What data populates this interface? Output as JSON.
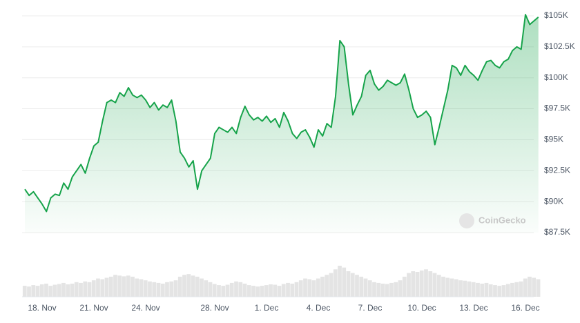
{
  "chart_data": {
    "type": "line",
    "categories": [
      null,
      null,
      null,
      null,
      "18. Nov",
      null,
      null,
      null,
      null,
      null,
      null,
      null,
      null,
      null,
      null,
      null,
      "21. Nov",
      null,
      null,
      null,
      null,
      null,
      null,
      null,
      null,
      null,
      null,
      null,
      "24. Nov",
      null,
      null,
      null,
      null,
      null,
      null,
      null,
      null,
      null,
      null,
      null,
      null,
      null,
      null,
      null,
      "28. Nov",
      null,
      null,
      null,
      null,
      null,
      null,
      null,
      null,
      null,
      null,
      null,
      "1. Dec",
      null,
      null,
      null,
      null,
      null,
      null,
      null,
      null,
      null,
      null,
      null,
      "4. Dec",
      null,
      null,
      null,
      null,
      null,
      null,
      null,
      null,
      null,
      null,
      null,
      "7. Dec",
      null,
      null,
      null,
      null,
      null,
      null,
      null,
      null,
      null,
      null,
      null,
      "10. Dec",
      null,
      null,
      null,
      null,
      null,
      null,
      null,
      null,
      null,
      null,
      null,
      "13. Dec",
      null,
      null,
      null,
      null,
      null,
      null,
      null,
      null,
      null,
      null,
      null,
      "16. Dec",
      null,
      null,
      null
    ],
    "series": [
      {
        "color": "#16a34a",
        "values": [
          91000,
          90500,
          90800,
          90300,
          89800,
          89200,
          90300,
          90600,
          90500,
          91500,
          91000,
          92000,
          92500,
          93000,
          92300,
          93500,
          94500,
          94800,
          96500,
          98000,
          98200,
          98000,
          98800,
          98500,
          99200,
          98600,
          98400,
          98600,
          98200,
          97600,
          98000,
          97400,
          97800,
          97600,
          98200,
          96500,
          94000,
          93500,
          92800,
          93300,
          91000,
          92500,
          93000,
          93500,
          95500,
          96000,
          95800,
          95600,
          96000,
          95500,
          96800,
          97700,
          97000,
          96600,
          96800,
          96500,
          96900,
          96400,
          96700,
          96000,
          97200,
          96500,
          95500,
          95100,
          95600,
          95800,
          95200,
          94400,
          95800,
          95300,
          96300,
          96000,
          98500,
          103000,
          102500,
          99500,
          97000,
          97800,
          98500,
          100200,
          100600,
          99500,
          99000,
          99300,
          99800,
          99600,
          99400,
          99600,
          100300,
          99000,
          97500,
          96800,
          97000,
          97300,
          96800,
          94600,
          96000,
          97500,
          99000,
          101000,
          100800,
          100200,
          101000,
          100500,
          100200,
          99800,
          100600,
          101300,
          101400,
          101000,
          100800,
          101300,
          101500,
          102200,
          102500,
          102300,
          105100,
          104300,
          104600,
          104900
        ]
      }
    ],
    "volumes": [
      30,
      28,
      32,
      30,
      34,
      36,
      30,
      33,
      35,
      38,
      34,
      36,
      40,
      38,
      42,
      40,
      45,
      50,
      48,
      52,
      55,
      60,
      58,
      56,
      58,
      55,
      50,
      48,
      45,
      42,
      40,
      38,
      36,
      40,
      42,
      45,
      55,
      60,
      62,
      58,
      55,
      50,
      45,
      40,
      35,
      32,
      30,
      33,
      38,
      42,
      40,
      36,
      32,
      30,
      28,
      30,
      32,
      34,
      33,
      30,
      35,
      38,
      36,
      40,
      45,
      50,
      48,
      45,
      50,
      55,
      60,
      65,
      75,
      85,
      80,
      70,
      65,
      60,
      55,
      50,
      45,
      40,
      38,
      36,
      35,
      38,
      40,
      45,
      55,
      65,
      70,
      68,
      72,
      75,
      70,
      65,
      60,
      55,
      52,
      50,
      48,
      45,
      44,
      42,
      40,
      38,
      36,
      38,
      34,
      32,
      30,
      32,
      35,
      38,
      40,
      42,
      50,
      55,
      52,
      48
    ],
    "volume_color": "#e4e4e4",
    "ylim": [
      87500,
      105500
    ],
    "yticks": [
      {
        "value": 87500,
        "label": "$87.5K"
      },
      {
        "value": 90000,
        "label": "$90K"
      },
      {
        "value": 92500,
        "label": "$92.5K"
      },
      {
        "value": 95000,
        "label": "$95K"
      },
      {
        "value": 97500,
        "label": "$97.5K"
      },
      {
        "value": 100000,
        "label": "$100K"
      },
      {
        "value": 102500,
        "label": "$102.5K"
      },
      {
        "value": 105000,
        "label": "$105K"
      }
    ],
    "grid": true,
    "watermark": "CoinGecko"
  }
}
